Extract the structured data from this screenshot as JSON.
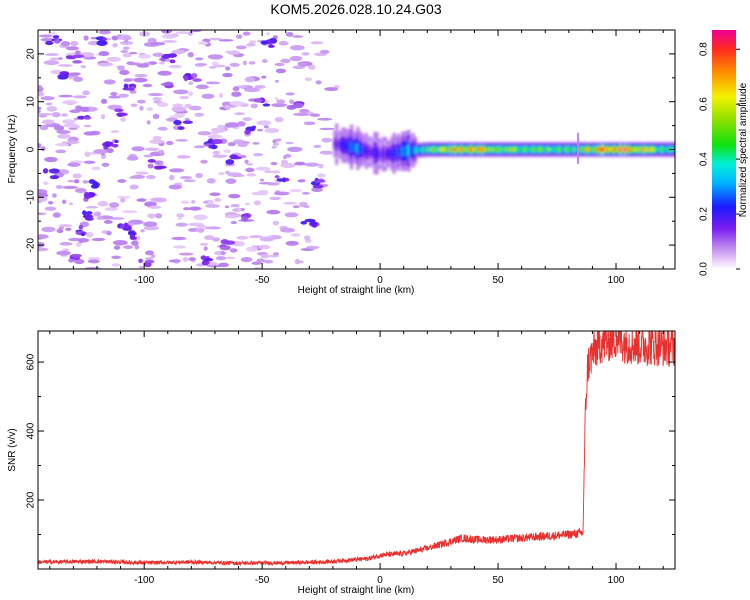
{
  "figure": {
    "title": "KOM5.2026.028.10.24.G03"
  },
  "chart_data": [
    {
      "type": "heatmap",
      "xlabel": "Height of straight line (km)",
      "ylabel": "Frequency (Hz)",
      "xlim": [
        -145,
        125
      ],
      "ylim": [
        -25,
        25
      ],
      "x_ticks": [
        -100,
        -50,
        0,
        50,
        100
      ],
      "y_ticks": [
        -20,
        -10,
        0,
        10,
        20
      ],
      "colorbar": {
        "label": "Normalized spectral amplitude",
        "range": [
          0,
          0.87
        ],
        "ticks": [
          0.0,
          0.2,
          0.4,
          0.6,
          0.8
        ]
      },
      "signal": [
        {
          "x": -20,
          "f": 1.2,
          "amp": 0.15
        },
        {
          "x": -15,
          "f": 0.8,
          "amp": 0.25
        },
        {
          "x": -10,
          "f": 0.2,
          "amp": 0.3
        },
        {
          "x": -5,
          "f": -0.5,
          "amp": 0.2
        },
        {
          "x": 0,
          "f": -1.0,
          "amp": 0.18
        },
        {
          "x": 5,
          "f": -0.8,
          "amp": 0.2
        },
        {
          "x": 10,
          "f": -0.3,
          "amp": 0.3
        },
        {
          "x": 20,
          "f": 0.0,
          "amp": 0.45
        },
        {
          "x": 35,
          "f": 0.0,
          "amp": 0.75
        },
        {
          "x": 50,
          "f": 0.0,
          "amp": 0.55
        },
        {
          "x": 65,
          "f": 0.0,
          "amp": 0.5
        },
        {
          "x": 80,
          "f": 0.0,
          "amp": 0.45
        },
        {
          "x": 100,
          "f": 0.0,
          "amp": 0.8
        },
        {
          "x": 125,
          "f": 0.0,
          "amp": 0.4
        }
      ]
    },
    {
      "type": "line",
      "xlabel": "Height of straight line (km)",
      "ylabel": "SNR (v/v)",
      "xlim": [
        -145,
        125
      ],
      "ylim": [
        0,
        690
      ],
      "x_ticks": [
        -100,
        -50,
        0,
        50,
        100
      ],
      "y_ticks": [
        200,
        400,
        600
      ],
      "color": "#e8302f",
      "series": [
        {
          "x": [
            -145,
            -120,
            -100,
            -80,
            -60,
            -40,
            -25,
            -15,
            -5,
            0,
            10,
            20,
            25,
            30,
            35,
            40,
            50,
            60,
            70,
            80,
            86,
            87,
            88,
            90,
            93,
            96,
            100,
            105,
            110,
            115,
            120,
            125
          ],
          "y": [
            20,
            22,
            18,
            20,
            17,
            18,
            20,
            25,
            30,
            40,
            45,
            60,
            70,
            80,
            90,
            85,
            85,
            90,
            95,
            100,
            105,
            450,
            590,
            625,
            655,
            660,
            670,
            655,
            650,
            650,
            648,
            645
          ]
        }
      ]
    }
  ]
}
